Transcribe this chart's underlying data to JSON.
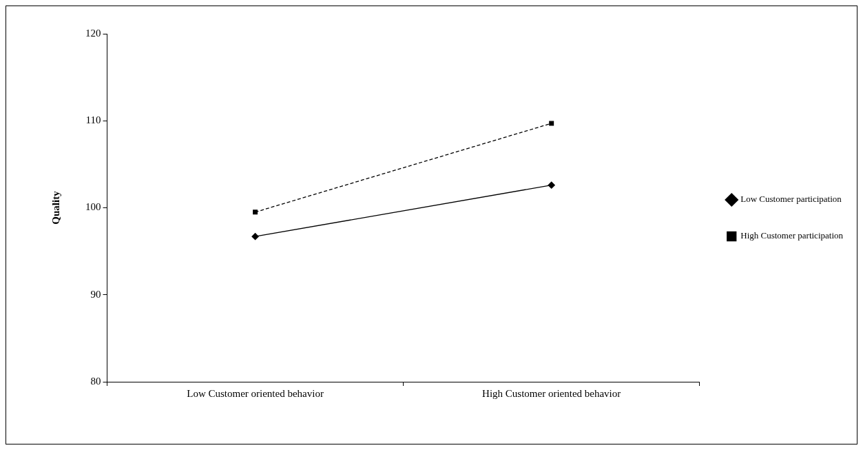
{
  "chart_data": {
    "type": "line",
    "ylabel": "Quality",
    "categories": [
      "Low Customer oriented behavior",
      "High Customer oriented behavior"
    ],
    "series": [
      {
        "name": "Low Customer participation",
        "color": "#000000",
        "values": [
          96.7,
          102.6
        ],
        "marker": "diamond",
        "line_style": "solid"
      },
      {
        "name": "High Customer participation",
        "color": "#000000",
        "values": [
          99.5,
          109.7
        ],
        "marker": "square",
        "line_style": "dashed"
      }
    ],
    "ylim": [
      80,
      120
    ],
    "yticks": [
      80,
      90,
      100,
      110,
      120
    ],
    "grid": false,
    "legend": "right"
  }
}
